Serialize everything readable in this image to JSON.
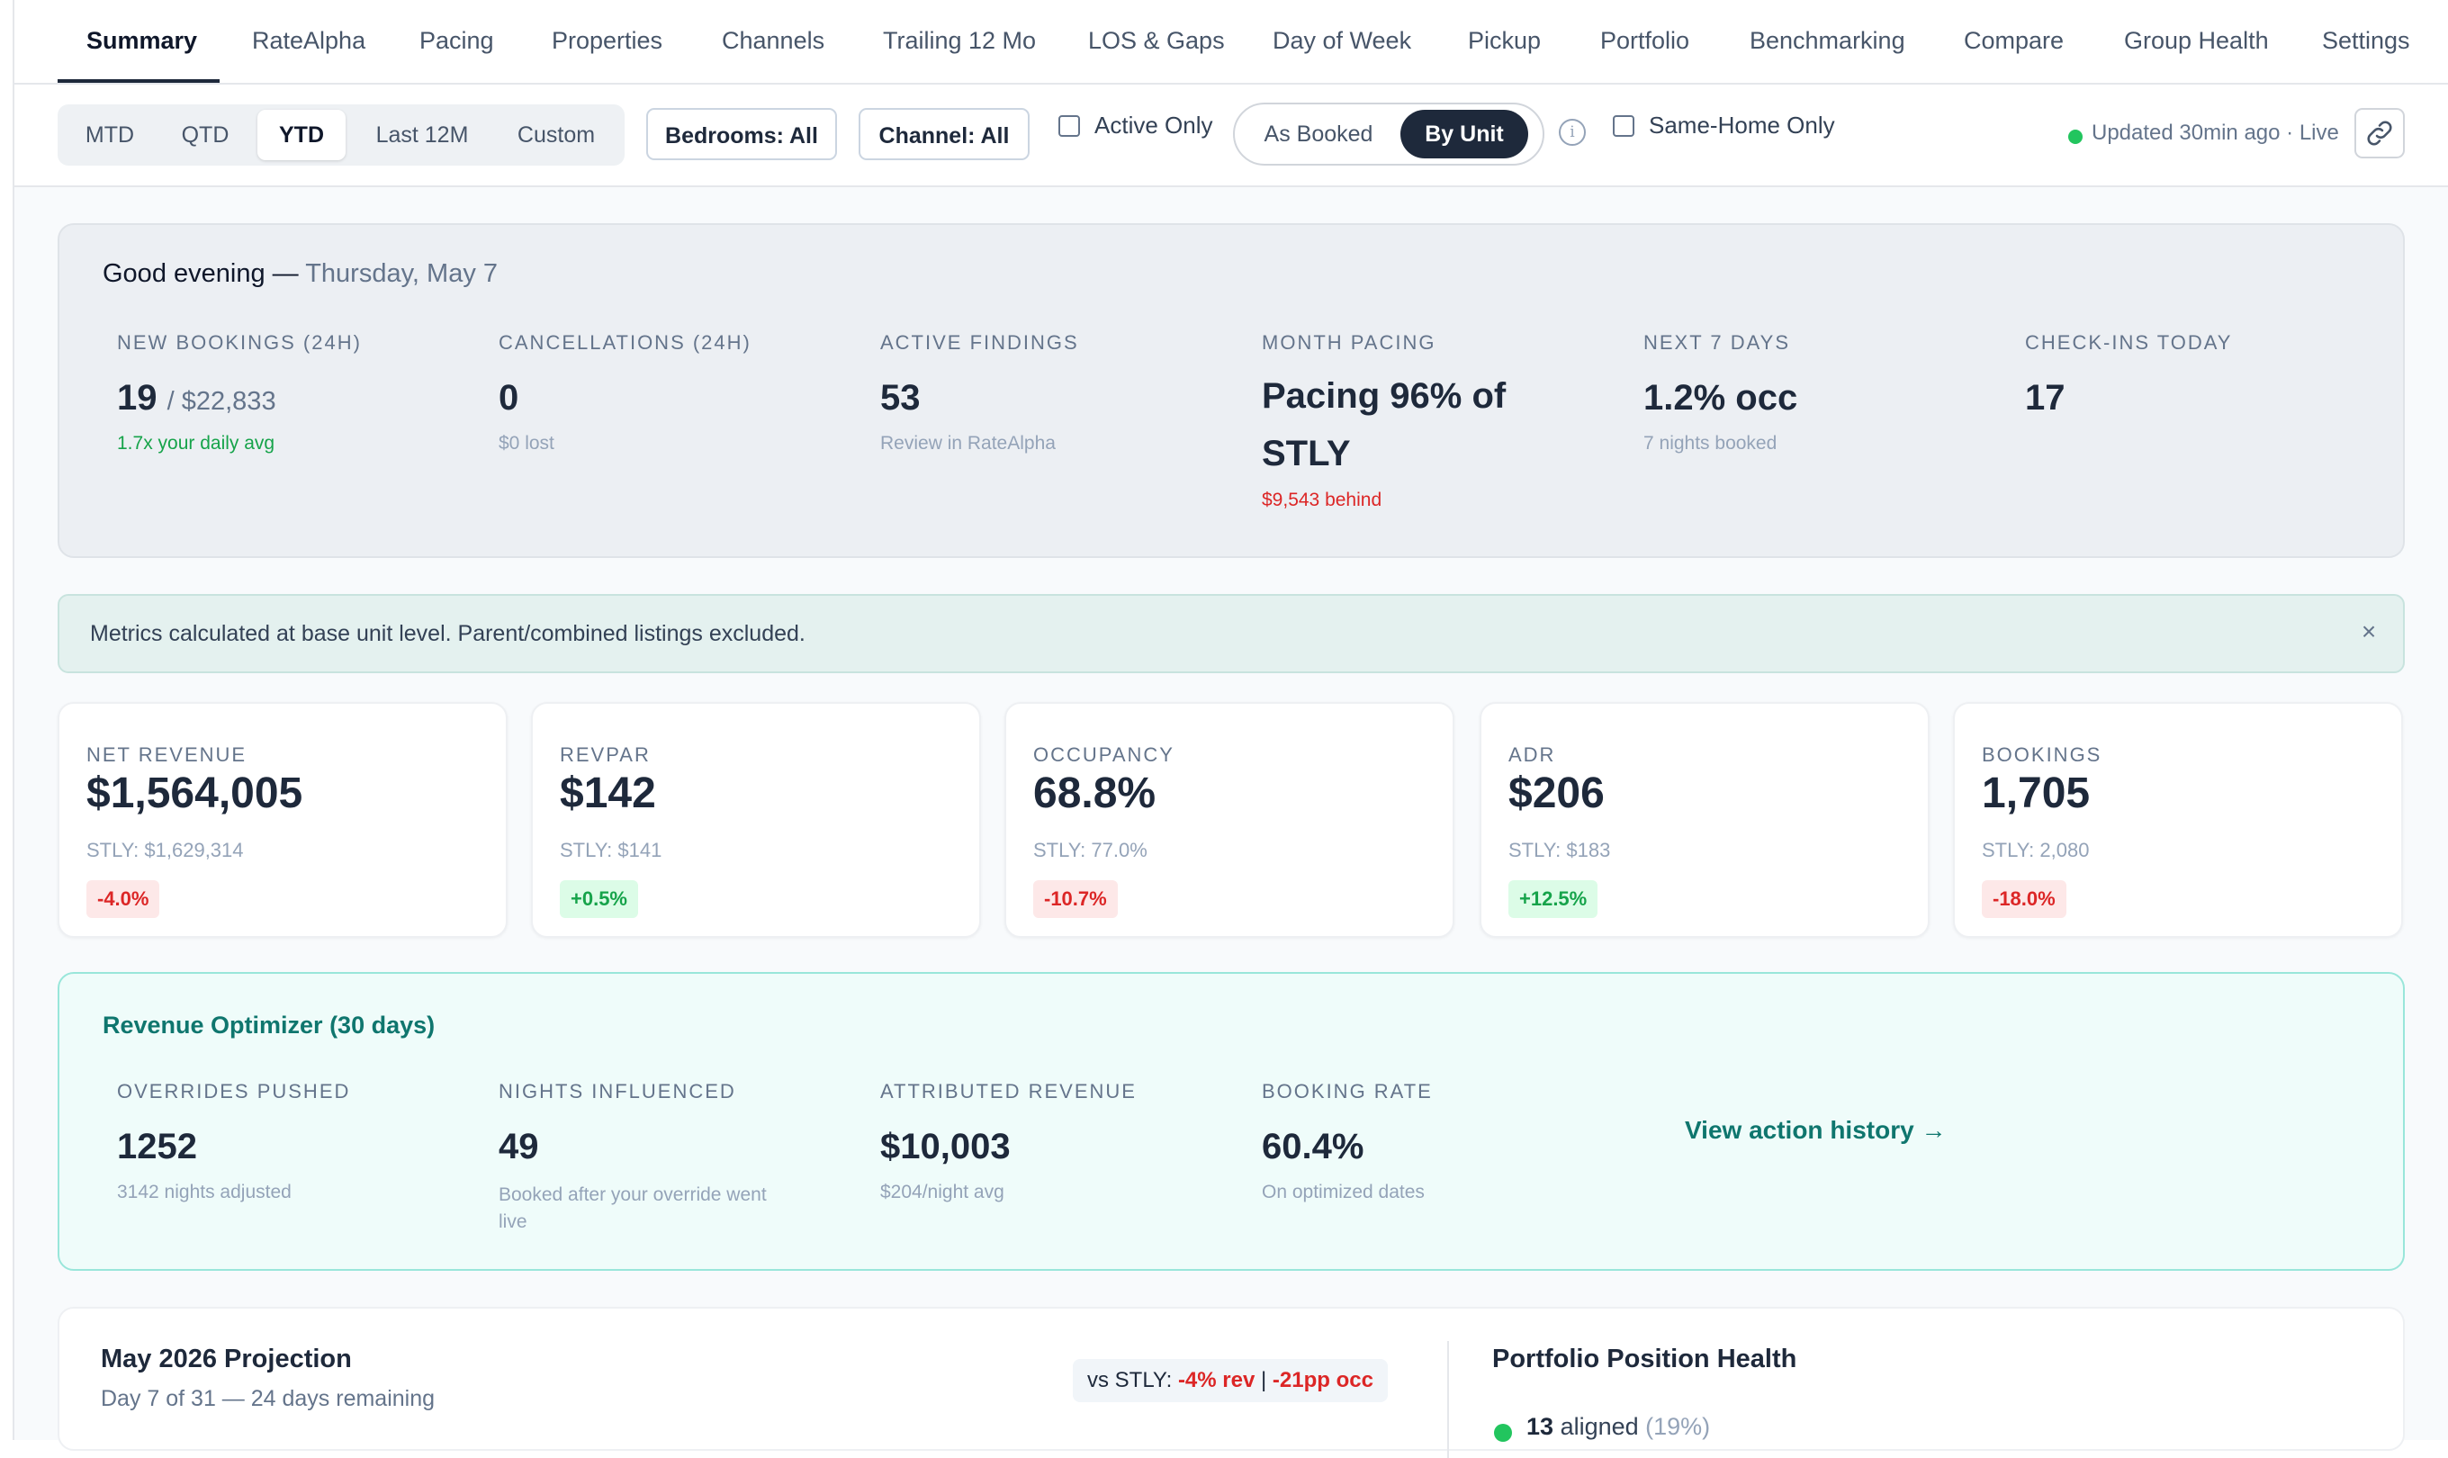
{
  "nav": {
    "tabs": [
      {
        "label": "Summary"
      },
      {
        "label": "RateAlpha"
      },
      {
        "label": "Pacing"
      },
      {
        "label": "Properties"
      },
      {
        "label": "Channels"
      },
      {
        "label": "Trailing 12 Mo"
      },
      {
        "label": "LOS & Gaps"
      },
      {
        "label": "Day of Week"
      },
      {
        "label": "Pickup"
      },
      {
        "label": "Portfolio"
      },
      {
        "label": "Benchmarking"
      },
      {
        "label": "Compare"
      },
      {
        "label": "Group Health"
      },
      {
        "label": "Settings"
      }
    ],
    "active_tab": "Summary"
  },
  "filters": {
    "periods": [
      "MTD",
      "QTD",
      "YTD",
      "Last 12M",
      "Custom"
    ],
    "selected_period": "YTD",
    "bedrooms_label": "Bedrooms: All",
    "channel_label": "Channel: All",
    "active_only_label": "Active Only",
    "active_only_checked": false,
    "mode_options": [
      "As Booked",
      "By Unit"
    ],
    "selected_mode": "By Unit",
    "same_home_label": "Same-Home Only",
    "same_home_checked": false,
    "status_text": "Updated 30min ago · Live",
    "status_color": "#22c55e"
  },
  "greeting": {
    "title": "Good evening —",
    "date": "Thursday, May 7",
    "stats": [
      {
        "label": "NEW BOOKINGS (24H)",
        "value": "19",
        "value_sub": "/ $22,833",
        "note": "1.7x your daily avg",
        "note_tone": "green"
      },
      {
        "label": "CANCELLATIONS (24H)",
        "value": "0",
        "value_sub": "",
        "note": "$0 lost",
        "note_tone": "muted"
      },
      {
        "label": "ACTIVE FINDINGS",
        "value": "53",
        "value_sub": "",
        "note": "Review in RateAlpha",
        "note_tone": "muted"
      },
      {
        "label": "MONTH PACING",
        "value_line1": "Pacing 96% of",
        "value_line2": "STLY",
        "note": "$9,543 behind",
        "note_tone": "red"
      },
      {
        "label": "NEXT 7 DAYS",
        "value": "1.2% occ",
        "value_sub": "",
        "note": "7 nights booked",
        "note_tone": "muted"
      },
      {
        "label": "CHECK-INS TODAY",
        "value": "17",
        "value_sub": "",
        "note": "",
        "note_tone": "muted"
      }
    ]
  },
  "banner": {
    "text": "Metrics calculated at base unit level. Parent/combined listings excluded.",
    "close_glyph": "×"
  },
  "kpis": [
    {
      "label": "NET REVENUE",
      "value": "$1,564,005",
      "stly": "STLY: $1,629,314",
      "delta": "-4.0%",
      "tone": "neg"
    },
    {
      "label": "REVPAR",
      "value": "$142",
      "stly": "STLY: $141",
      "delta": "+0.5%",
      "tone": "pos"
    },
    {
      "label": "OCCUPANCY",
      "value": "68.8%",
      "stly": "STLY: 77.0%",
      "delta": "-10.7%",
      "tone": "neg"
    },
    {
      "label": "ADR",
      "value": "$206",
      "stly": "STLY: $183",
      "delta": "+12.5%",
      "tone": "pos"
    },
    {
      "label": "BOOKINGS",
      "value": "1,705",
      "stly": "STLY: 2,080",
      "delta": "-18.0%",
      "tone": "neg"
    }
  ],
  "optimizer": {
    "title": "Revenue Optimizer (30 days)",
    "stats": [
      {
        "label": "OVERRIDES PUSHED",
        "value": "1252",
        "note": "3142 nights adjusted"
      },
      {
        "label": "NIGHTS INFLUENCED",
        "value": "49",
        "note_line1": "Booked after your override went",
        "note_line2": "live"
      },
      {
        "label": "ATTRIBUTED REVENUE",
        "value": "$10,003",
        "note": "$204/night avg"
      },
      {
        "label": "BOOKING RATE",
        "value": "60.4%",
        "note": "On optimized dates"
      }
    ],
    "link": "View action history →"
  },
  "projection": {
    "title": "May 2026 Projection",
    "subtitle": "Day 7 of 31 — 24 days remaining",
    "vs_prefix": "vs STLY:",
    "vs_rev": "-4% rev",
    "vs_sep": "|",
    "vs_occ": "-21pp occ"
  },
  "health": {
    "title": "Portfolio Position Health",
    "rows": [
      {
        "count": "13",
        "label": "aligned",
        "pct": "(19%)",
        "color": "#22c55e"
      }
    ]
  },
  "icons": {
    "info": "info-icon",
    "link": "link-icon",
    "close": "close-icon"
  }
}
